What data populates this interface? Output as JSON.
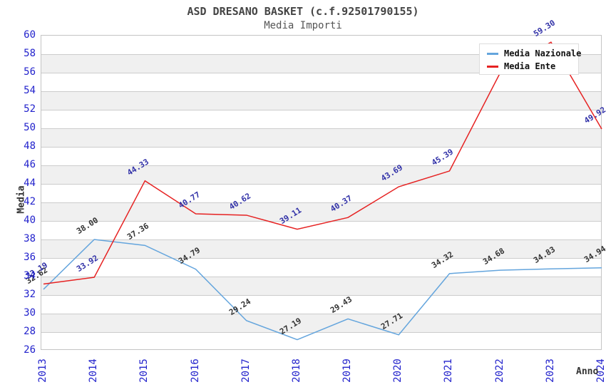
{
  "title": "ASD DRESANO BASKET (c.f.92501790155)",
  "subtitle": "Media Importi",
  "axis": {
    "y_label": "Media",
    "x_label": "Anno"
  },
  "legend": {
    "items": [
      {
        "label": "Media Nazionale",
        "color": "#64a5dd"
      },
      {
        "label": "Media Ente",
        "color": "#e62222"
      }
    ]
  },
  "chart_data": {
    "type": "line",
    "title": "Media Importi",
    "xlabel": "Anno",
    "ylabel": "Media",
    "x": [
      2013,
      2014,
      2015,
      2016,
      2017,
      2018,
      2019,
      2020,
      2021,
      2022,
      2023,
      2024
    ],
    "series": [
      {
        "name": "Media Nazionale",
        "color": "#64a5dd",
        "label_color": "#333333",
        "values": [
          32.62,
          38.0,
          37.36,
          34.79,
          29.24,
          27.19,
          29.43,
          27.71,
          34.32,
          34.68,
          34.83,
          34.94
        ],
        "labels": [
          "32.62",
          "38.00",
          "37.36",
          "34.79",
          "29.24",
          "27.19",
          "29.43",
          "27.71",
          "34.32",
          "34.68",
          "34.83",
          "34.94"
        ]
      },
      {
        "name": "Media Ente",
        "color": "#e62222",
        "label_color": "#3232a8",
        "values": [
          33.19,
          33.92,
          44.33,
          40.77,
          40.62,
          39.11,
          40.37,
          43.69,
          45.39,
          56.0,
          59.3,
          49.92
        ],
        "labels": [
          "33.19",
          "33.92",
          "44.33",
          "40.77",
          "40.62",
          "39.11",
          "40.37",
          "43.69",
          "45.39",
          "56.00",
          "59.30",
          "49.92"
        ]
      }
    ],
    "ylim": [
      26,
      60
    ],
    "ytick_step": 2,
    "grid": true,
    "alternating_bands": true,
    "legend_position": "top-right",
    "tick_color": "#2222cc",
    "band_color": "#f0f0f0",
    "grid_color": "#cccccc"
  }
}
